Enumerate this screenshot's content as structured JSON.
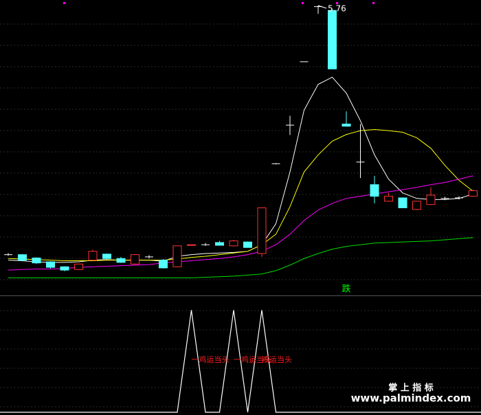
{
  "chart_data": [
    {
      "type": "candlestick",
      "ylim": [
        0.5,
        5.86
      ],
      "up_color": "#ff3232",
      "down_color": "#54ffff",
      "flat_color": "#ffffff",
      "open": [
        1.24,
        1.24,
        1.18,
        1.11,
        1.02,
        0.97,
        1.14,
        1.25,
        1.17,
        1.07,
        1.2,
        1.14,
        1.02,
        1.41,
        1.42,
        1.46,
        1.4,
        1.47,
        1.26,
        2.89,
        3.59,
        4.74,
        5.74,
        5.67,
        3.61,
        2.92,
        2.51,
        2.21,
        2.27,
        2.06,
        2.15,
        2.26,
        2.27,
        2.3
      ],
      "high": [
        1.27,
        1.25,
        1.19,
        1.12,
        1.03,
        1.08,
        1.33,
        1.26,
        1.2,
        1.25,
        1.23,
        1.16,
        1.4,
        1.42,
        1.45,
        1.49,
        1.51,
        1.48,
        2.09,
        2.9,
        3.76,
        4.74,
        5.76,
        5.7,
        3.84,
        3.61,
        2.67,
        2.36,
        2.28,
        2.21,
        2.46,
        2.29,
        2.3,
        2.42
      ],
      "low": [
        1.22,
        1.12,
        1.07,
        0.99,
        0.94,
        0.96,
        1.13,
        1.16,
        1.09,
        1.06,
        1.17,
        0.99,
        1.01,
        1.41,
        1.4,
        1.41,
        1.39,
        1.37,
        1.2,
        2.88,
        3.41,
        4.74,
        5.61,
        4.61,
        3.57,
        2.63,
        2.17,
        2.2,
        2.09,
        2.05,
        2.14,
        2.23,
        2.24,
        2.29
      ],
      "close": [
        1.24,
        1.14,
        1.09,
        1.01,
        0.96,
        1.07,
        1.3,
        1.17,
        1.1,
        1.24,
        1.2,
        1.0,
        1.4,
        1.42,
        1.42,
        1.41,
        1.49,
        1.37,
        2.09,
        2.89,
        3.59,
        4.74,
        5.74,
        4.61,
        3.57,
        2.92,
        2.3,
        2.3,
        2.09,
        2.21,
        2.32,
        2.26,
        2.27,
        2.4
      ],
      "lines": [
        {
          "color": "#ffffff",
          "values": [
            1.14,
            1.13,
            1.11,
            1.1,
            1.1,
            1.11,
            1.14,
            1.15,
            1.14,
            1.14,
            1.14,
            1.12,
            1.21,
            1.24,
            1.26,
            1.27,
            1.28,
            1.3,
            1.42,
            1.8,
            2.74,
            3.86,
            4.33,
            4.46,
            4.17,
            3.67,
            3.05,
            2.61,
            2.36,
            2.26,
            2.24,
            2.24,
            2.26,
            2.34
          ]
        },
        {
          "color": "#ffff00",
          "values": [
            1.17,
            1.16,
            1.15,
            1.14,
            1.13,
            1.13,
            1.13,
            1.14,
            1.14,
            1.14,
            1.14,
            1.14,
            1.16,
            1.19,
            1.21,
            1.24,
            1.27,
            1.3,
            1.42,
            1.61,
            2.11,
            2.74,
            3.05,
            3.3,
            3.42,
            3.49,
            3.51,
            3.49,
            3.46,
            3.36,
            3.17,
            2.86,
            2.59,
            2.39
          ]
        },
        {
          "color": "#ff00ff",
          "values": [
            0.96,
            0.97,
            0.98,
            0.98,
            0.99,
            1.01,
            1.02,
            1.03,
            1.04,
            1.05,
            1.06,
            1.09,
            1.11,
            1.13,
            1.15,
            1.17,
            1.2,
            1.24,
            1.3,
            1.42,
            1.61,
            1.86,
            2.05,
            2.17,
            2.26,
            2.3,
            2.34,
            2.38,
            2.42,
            2.46,
            2.51,
            2.55,
            2.61,
            2.67
          ]
        },
        {
          "color": "#00dd00",
          "values": [
            0.82,
            0.82,
            0.82,
            0.82,
            0.82,
            0.82,
            0.82,
            0.82,
            0.82,
            0.82,
            0.82,
            0.82,
            0.82,
            0.82,
            0.83,
            0.84,
            0.85,
            0.87,
            0.89,
            0.95,
            1.05,
            1.17,
            1.26,
            1.34,
            1.39,
            1.42,
            1.45,
            1.46,
            1.47,
            1.48,
            1.49,
            1.51,
            1.53,
            1.55
          ]
        }
      ],
      "annotations": [
        {
          "text": "跌",
          "x": 24,
          "color": "#00ff00"
        }
      ]
    },
    {
      "type": "line",
      "ylim": [
        0,
        1.13
      ],
      "color": "#ffffff",
      "values": [
        0,
        0,
        0,
        0,
        0,
        0,
        0,
        0,
        0,
        0,
        0,
        0,
        0,
        1,
        0,
        0,
        1,
        0,
        1,
        0,
        0,
        0,
        0,
        0,
        0,
        0,
        0,
        0,
        0,
        0,
        0,
        0,
        0,
        0
      ],
      "annotations": [
        {
          "text": "一鸡运当头",
          "x": 13,
          "color": "#ff2020"
        },
        {
          "text": "一鸡运当头",
          "x": 16,
          "color": "#ff2020"
        },
        {
          "text": "鸡运当头",
          "x": 18,
          "color": "#ff2020"
        }
      ]
    }
  ],
  "watermark": {
    "title": "掌 上 指 标",
    "url": "www.palmindex.com"
  }
}
